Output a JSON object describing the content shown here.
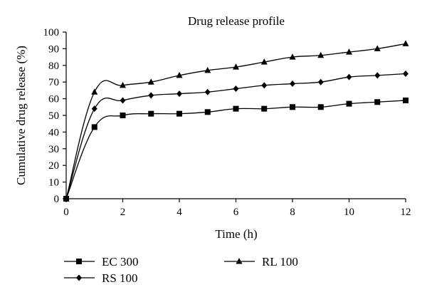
{
  "chart_data": {
    "type": "line",
    "title": "Drug release profile",
    "xlabel": "Time (h)",
    "ylabel": "Cumulative drug release (%)",
    "xlim": [
      0,
      12
    ],
    "ylim": [
      0,
      100
    ],
    "xticks": [
      0,
      2,
      4,
      6,
      8,
      10,
      12
    ],
    "yticks": [
      0,
      10,
      20,
      30,
      40,
      50,
      60,
      70,
      80,
      90,
      100
    ],
    "grid": false,
    "legend_position": "bottom",
    "x": [
      0,
      1,
      2,
      3,
      4,
      5,
      6,
      7,
      8,
      9,
      10,
      11,
      12
    ],
    "series": [
      {
        "name": "EC 300",
        "marker": "square",
        "color": "#000000",
        "values": [
          0,
          43,
          50,
          51,
          51,
          52,
          54,
          54,
          55,
          55,
          57,
          58,
          59
        ]
      },
      {
        "name": "RL 100",
        "marker": "triangle",
        "color": "#000000",
        "values": [
          0,
          64,
          68,
          70,
          74,
          77,
          79,
          82,
          85,
          86,
          88,
          90,
          93
        ]
      },
      {
        "name": "RS 100",
        "marker": "diamond",
        "color": "#000000",
        "values": [
          0,
          54,
          59,
          62,
          63,
          64,
          66,
          68,
          69,
          70,
          73,
          74,
          75
        ]
      }
    ]
  }
}
